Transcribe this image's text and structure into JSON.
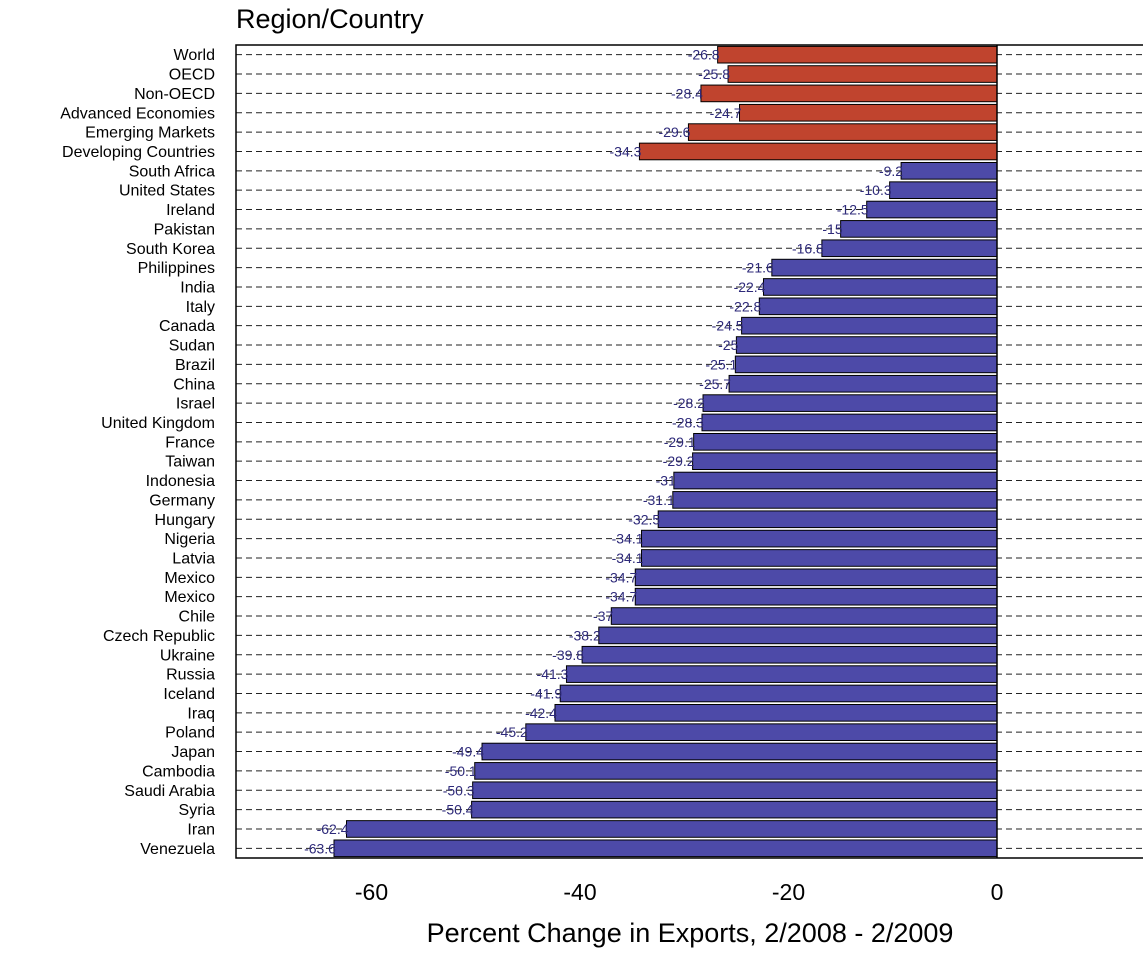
{
  "chart_data": {
    "type": "bar",
    "orientation": "horizontal",
    "title": "Region/Country",
    "xlabel": "Percent Change in Exports, 2/2008 - 2/2009",
    "xlim": [
      -73,
      0
    ],
    "xticks": [
      -60,
      -40,
      -20,
      0
    ],
    "grid": "horizontal dashed",
    "colors": {
      "aggregate": "#c0442e",
      "country": "#4d4aa8",
      "label": "#2e2a7a"
    },
    "categories": [
      "World",
      "OECD",
      "Non-OECD",
      "Advanced Economies",
      "Emerging Markets",
      "Developing Countries",
      "South Africa",
      "United States",
      "Ireland",
      "Pakistan",
      "South Korea",
      "Philippines",
      "India",
      "Italy",
      "Canada",
      "Sudan",
      "Brazil",
      "China",
      "Israel",
      "United Kingdom",
      "France",
      "Taiwan",
      "Indonesia",
      "Germany",
      "Hungary",
      "Nigeria",
      "Latvia",
      "Mexico",
      "Mexico",
      "Chile",
      "Czech Republic",
      "Ukraine",
      "Russia",
      "Iceland",
      "Iraq",
      "Poland",
      "Japan",
      "Cambodia",
      "Saudi Arabia",
      "Syria",
      "Iran",
      "Venezuela"
    ],
    "values": [
      -26.8,
      -25.8,
      -28.4,
      -24.7,
      -29.6,
      -34.3,
      -9.2,
      -10.3,
      -12.5,
      -15,
      -16.8,
      -21.6,
      -22.4,
      -22.8,
      -24.5,
      -25,
      -25.1,
      -25.7,
      -28.2,
      -28.3,
      -29.1,
      -29.2,
      -31,
      -31.1,
      -32.5,
      -34.1,
      -34.1,
      -34.7,
      -34.7,
      -37,
      -38.2,
      -39.8,
      -41.3,
      -41.9,
      -42.4,
      -45.2,
      -49.4,
      -50.1,
      -50.3,
      -50.4,
      -62.4,
      -63.6
    ],
    "value_labels": [
      "-26.8",
      "-25.8",
      "-28.4",
      "-24.7",
      "-29.6",
      "-34.3",
      "-9.2",
      "-10.3",
      "-12.5",
      "-15",
      "-16.8",
      "-21.6",
      "-22.4",
      "-22.8",
      "-24.5",
      "-25",
      "-25.1",
      "-25.7",
      "-28.2",
      "-28.3",
      "-29.1",
      "-29.2",
      "-31",
      "-31.1",
      "-32.5",
      "-34.1",
      "-34.1",
      "-34.7",
      "-34.7",
      "-37",
      "-38.2",
      "-39.8",
      "-41.3",
      "-41.9",
      "-42.4",
      "-45.2",
      "-49.4",
      "-50.1",
      "-50.3",
      "-50.4",
      "-62.4",
      "-63.6"
    ],
    "group": [
      "aggregate",
      "aggregate",
      "aggregate",
      "aggregate",
      "aggregate",
      "aggregate",
      "country",
      "country",
      "country",
      "country",
      "country",
      "country",
      "country",
      "country",
      "country",
      "country",
      "country",
      "country",
      "country",
      "country",
      "country",
      "country",
      "country",
      "country",
      "country",
      "country",
      "country",
      "country",
      "country",
      "country",
      "country",
      "country",
      "country",
      "country",
      "country",
      "country",
      "country",
      "country",
      "country",
      "country",
      "country",
      "country"
    ]
  }
}
